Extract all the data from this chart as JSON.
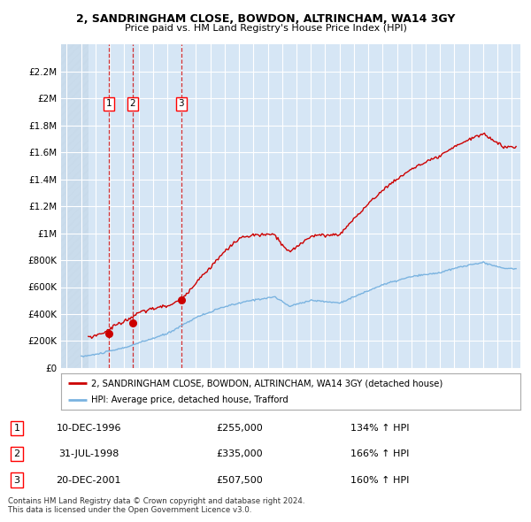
{
  "title1": "2, SANDRINGHAM CLOSE, BOWDON, ALTRINCHAM, WA14 3GY",
  "title2": "Price paid vs. HM Land Registry's House Price Index (HPI)",
  "ylim": [
    0,
    2400000
  ],
  "yticks": [
    0,
    200000,
    400000,
    600000,
    800000,
    1000000,
    1200000,
    1400000,
    1600000,
    1800000,
    2000000,
    2200000
  ],
  "ytick_labels": [
    "£0",
    "£200K",
    "£400K",
    "£600K",
    "£800K",
    "£1M",
    "£1.2M",
    "£1.4M",
    "£1.6M",
    "£1.8M",
    "£2M",
    "£2.2M"
  ],
  "xlim_start": 1993.6,
  "xlim_end": 2025.6,
  "plot_bg": "#d6e6f5",
  "hatch_color": "#b8cfe0",
  "hpi_color": "#7ab3e0",
  "price_color": "#cc0000",
  "transactions": [
    {
      "label": 1,
      "date_str": "10-DEC-1996",
      "year": 1996.94,
      "price": 255000,
      "hpi_pct": "134% ↑ HPI"
    },
    {
      "label": 2,
      "date_str": "31-JUL-1998",
      "year": 1998.58,
      "price": 335000,
      "hpi_pct": "166% ↑ HPI"
    },
    {
      "label": 3,
      "date_str": "20-DEC-2001",
      "year": 2001.97,
      "price": 507500,
      "hpi_pct": "160% ↑ HPI"
    }
  ],
  "legend_label_price": "2, SANDRINGHAM CLOSE, BOWDON, ALTRINCHAM, WA14 3GY (detached house)",
  "legend_label_hpi": "HPI: Average price, detached house, Trafford",
  "footnote": "Contains HM Land Registry data © Crown copyright and database right 2024.\nThis data is licensed under the Open Government Licence v3.0."
}
